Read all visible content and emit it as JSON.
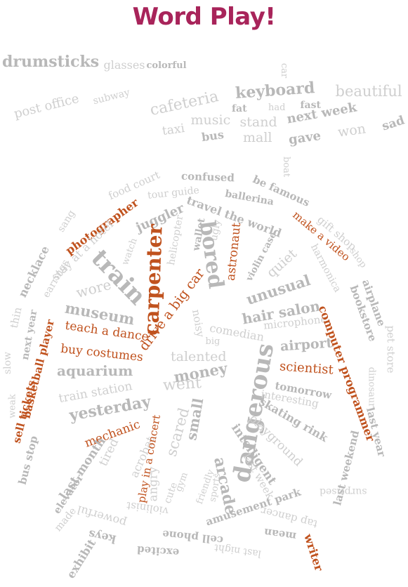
{
  "title": "Word Play!",
  "colors": {
    "title": "#a8245a",
    "accent": "#c0521e",
    "neutral": "#b8b8b8",
    "light": "#cfcfcf"
  },
  "words": [
    {
      "t": "drumsticks",
      "c": "neutral",
      "b": 1
    },
    {
      "t": "glasses",
      "c": "light"
    },
    {
      "t": "colorful",
      "c": "neutral",
      "b": 1
    },
    {
      "t": "post office",
      "c": "light"
    },
    {
      "t": "subway",
      "c": "light"
    },
    {
      "t": "car",
      "c": "light"
    },
    {
      "t": "cafeteria",
      "c": "light"
    },
    {
      "t": "keyboard",
      "c": "neutral",
      "b": 1
    },
    {
      "t": "beautiful",
      "c": "light"
    },
    {
      "t": "fat",
      "c": "neutral",
      "b": 1
    },
    {
      "t": "had",
      "c": "light"
    },
    {
      "t": "fast",
      "c": "neutral",
      "b": 1
    },
    {
      "t": "music",
      "c": "light"
    },
    {
      "t": "stand",
      "c": "light"
    },
    {
      "t": "next week",
      "c": "neutral",
      "b": 1
    },
    {
      "t": "sad",
      "c": "neutral",
      "b": 1
    },
    {
      "t": "taxi",
      "c": "light"
    },
    {
      "t": "bus",
      "c": "neutral",
      "b": 1
    },
    {
      "t": "mall",
      "c": "light"
    },
    {
      "t": "gave",
      "c": "neutral",
      "b": 1
    },
    {
      "t": "won",
      "c": "light"
    },
    {
      "t": "boat",
      "c": "light"
    },
    {
      "t": "food court",
      "c": "light"
    },
    {
      "t": "confused",
      "c": "neutral",
      "b": 1
    },
    {
      "t": "be famous",
      "c": "neutral",
      "b": 1
    },
    {
      "t": "tour guide",
      "c": "light"
    },
    {
      "t": "ballerina",
      "c": "neutral",
      "b": 1
    },
    {
      "t": "sang",
      "c": "light"
    },
    {
      "t": "photographer",
      "c": "accent",
      "b": 1
    },
    {
      "t": "juggler",
      "c": "neutral",
      "b": 1
    },
    {
      "t": "travel the world",
      "c": "neutral",
      "b": 1
    },
    {
      "t": "gift shop",
      "c": "light"
    },
    {
      "t": "make a video",
      "c": "accent"
    },
    {
      "t": "stay at a hotel",
      "c": "light"
    },
    {
      "t": "necklace",
      "c": "neutral",
      "b": 1
    },
    {
      "t": "earrings",
      "c": "light"
    },
    {
      "t": "watch",
      "c": "light"
    },
    {
      "t": "helicopter",
      "c": "light"
    },
    {
      "t": "wallet",
      "c": "neutral",
      "b": 1
    },
    {
      "t": "ugly",
      "c": "light"
    },
    {
      "t": "astronaut",
      "c": "accent"
    },
    {
      "t": "violin case",
      "c": "neutral",
      "b": 1
    },
    {
      "t": "quiet",
      "c": "light"
    },
    {
      "t": "harmonica",
      "c": "light"
    },
    {
      "t": "shop",
      "c": "light"
    },
    {
      "t": "airplane",
      "c": "neutral",
      "b": 1
    },
    {
      "t": "bookstore",
      "c": "neutral",
      "b": 1
    },
    {
      "t": "train",
      "c": "neutral",
      "b": 1
    },
    {
      "t": "wore",
      "c": "light"
    },
    {
      "t": "carpenter",
      "c": "accent",
      "b": 1
    },
    {
      "t": "drive a big car",
      "c": "accent"
    },
    {
      "t": "bored",
      "c": "neutral",
      "b": 1
    },
    {
      "t": "unusual",
      "c": "neutral",
      "b": 1
    },
    {
      "t": "hair salon",
      "c": "neutral",
      "b": 1
    },
    {
      "t": "thin",
      "c": "light"
    },
    {
      "t": "museum",
      "c": "neutral",
      "b": 1
    },
    {
      "t": "next year",
      "c": "neutral",
      "b": 1
    },
    {
      "t": "teach a dance",
      "c": "accent"
    },
    {
      "t": "noisy",
      "c": "light"
    },
    {
      "t": "comedian",
      "c": "light"
    },
    {
      "t": "microphone",
      "c": "light"
    },
    {
      "t": "pet store",
      "c": "light"
    },
    {
      "t": "buy costumes",
      "c": "accent"
    },
    {
      "t": "big",
      "c": "light"
    },
    {
      "t": "airport",
      "c": "neutral",
      "b": 1
    },
    {
      "t": "computer programmer",
      "c": "accent",
      "b": 1
    },
    {
      "t": "slow",
      "c": "light"
    },
    {
      "t": "basketball player",
      "c": "accent",
      "b": 1
    },
    {
      "t": "talented",
      "c": "light"
    },
    {
      "t": "money",
      "c": "neutral",
      "b": 1
    },
    {
      "t": "scientist",
      "c": "accent"
    },
    {
      "t": "dinosaur",
      "c": "light"
    },
    {
      "t": "aquarium",
      "c": "neutral",
      "b": 1
    },
    {
      "t": "went",
      "c": "light"
    },
    {
      "t": "dangerous",
      "c": "neutral",
      "b": 1
    },
    {
      "t": "tomorrow",
      "c": "neutral",
      "b": 1
    },
    {
      "t": "weak",
      "c": "light"
    },
    {
      "t": "train station",
      "c": "light"
    },
    {
      "t": "interesting",
      "c": "light"
    },
    {
      "t": "sell tickets",
      "c": "accent",
      "b": 1
    },
    {
      "t": "yesterday",
      "c": "neutral",
      "b": 1
    },
    {
      "t": "small",
      "c": "neutral",
      "b": 1
    },
    {
      "t": "scared",
      "c": "light"
    },
    {
      "t": "skating rink",
      "c": "neutral",
      "b": 1
    },
    {
      "t": "last year",
      "c": "neutral",
      "b": 1
    },
    {
      "t": "mechanic",
      "c": "accent"
    },
    {
      "t": "playground",
      "c": "light"
    },
    {
      "t": "bus stop",
      "c": "neutral",
      "b": 1
    },
    {
      "t": "acrobat",
      "c": "light"
    },
    {
      "t": "intelligent",
      "c": "neutral",
      "b": 1
    },
    {
      "t": "last weekend",
      "c": "neutral",
      "b": 1
    },
    {
      "t": "tired",
      "c": "light"
    },
    {
      "t": "play in a concert",
      "c": "accent"
    },
    {
      "t": "last month",
      "c": "neutral",
      "b": 1
    },
    {
      "t": "angry",
      "c": "light"
    },
    {
      "t": "last week",
      "c": "light"
    },
    {
      "t": "arcade",
      "c": "neutral",
      "b": 1
    },
    {
      "t": "cute",
      "c": "light"
    },
    {
      "t": "gym",
      "c": "light"
    },
    {
      "t": "friendly",
      "c": "light"
    },
    {
      "t": "elevator",
      "c": "neutral",
      "b": 1
    },
    {
      "t": "sports",
      "c": "light"
    },
    {
      "t": "amusement park",
      "c": "neutral",
      "b": 1
    },
    {
      "t": "surprised",
      "c": "light"
    },
    {
      "t": "made",
      "c": "light"
    },
    {
      "t": "powerful",
      "c": "light"
    },
    {
      "t": "violinist",
      "c": "light"
    },
    {
      "t": "tap dancer",
      "c": "light"
    },
    {
      "t": "keys",
      "c": "neutral",
      "b": 1
    },
    {
      "t": "cell phone",
      "c": "neutral",
      "b": 1
    },
    {
      "t": "mean",
      "c": "neutral",
      "b": 1
    },
    {
      "t": "excited",
      "c": "neutral",
      "b": 1
    },
    {
      "t": "last night",
      "c": "light"
    },
    {
      "t": "writer",
      "c": "accent",
      "b": 1
    },
    {
      "t": "exhibit",
      "c": "neutral",
      "b": 1
    }
  ]
}
